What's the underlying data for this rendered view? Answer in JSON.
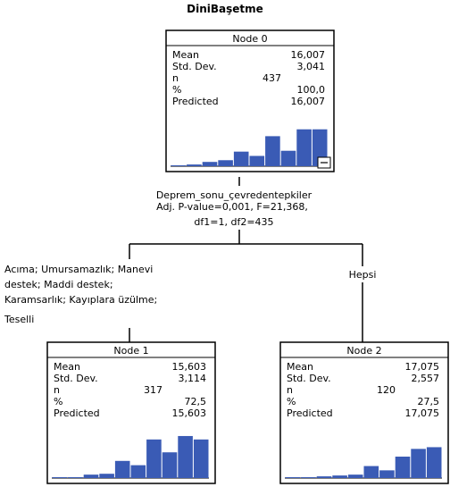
{
  "title": "DiniBaşetme",
  "split": {
    "variable": "Deprem_sonu_çevredentepkiler",
    "stats_line1": "Adj. P-value=0,001, F=21,368,",
    "stats_line2": "df1=1, df2=435",
    "left_label": [
      "Acıma; Umursamazlık; Manevi",
      "destek; Maddi destek;",
      "Karamsarlık; Kayıplara üzülme;",
      "Teselli"
    ],
    "right_label": "Hepsi"
  },
  "stat_labels": [
    "Mean",
    "Std. Dev.",
    "n",
    "%",
    "Predicted"
  ],
  "nodes": [
    {
      "title": "Node 0",
      "values": [
        "16,007",
        "3,041",
        "437",
        "100,0",
        "16,007"
      ],
      "histogram": [
        0.01,
        0.02,
        0.05,
        0.07,
        0.17,
        0.12,
        0.35,
        0.18,
        0.43,
        0.43
      ],
      "collapse_icon": "minus-icon"
    },
    {
      "title": "Node 1",
      "values": [
        "15,603",
        "3,114",
        "317",
        "72,5",
        "15,603"
      ],
      "histogram": [
        0.0,
        0.01,
        0.04,
        0.05,
        0.2,
        0.15,
        0.45,
        0.3,
        0.49,
        0.45
      ]
    },
    {
      "title": "Node 2",
      "values": [
        "17,075",
        "2,557",
        "120",
        "27,5",
        "17,075"
      ],
      "histogram": [
        0.0,
        0.01,
        0.02,
        0.03,
        0.04,
        0.14,
        0.09,
        0.25,
        0.34,
        0.36
      ]
    }
  ],
  "colors": {
    "bar": "#3a5bb5",
    "border": "#000000",
    "line": "#000000",
    "background": "#ffffff"
  }
}
